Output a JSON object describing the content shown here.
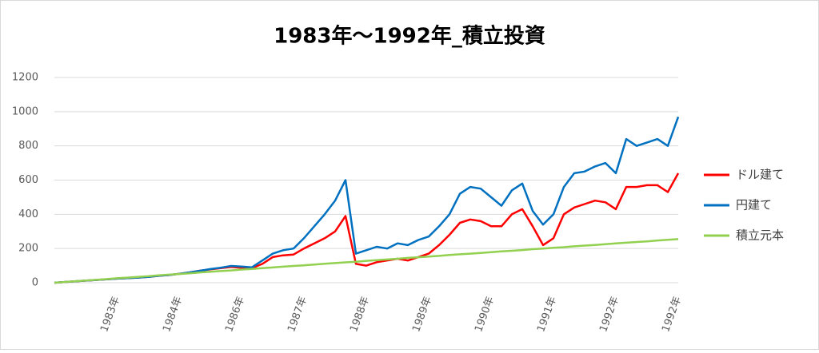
{
  "chart_data": {
    "type": "line",
    "title": "1983年～1992年_積立投資",
    "categories": [
      null,
      null,
      null,
      null,
      null,
      null,
      "1983年",
      null,
      null,
      null,
      null,
      null,
      "1984年",
      null,
      null,
      null,
      null,
      null,
      "1986年",
      null,
      null,
      null,
      null,
      null,
      "1987年",
      null,
      null,
      null,
      null,
      null,
      "1988年",
      null,
      null,
      null,
      null,
      null,
      "1989年",
      null,
      null,
      null,
      null,
      null,
      "1990年",
      null,
      null,
      null,
      null,
      null,
      "1991年",
      null,
      null,
      null,
      null,
      null,
      "1992年",
      null,
      null,
      null,
      null,
      null,
      "1992年"
    ],
    "series": [
      {
        "name": "ドル建て",
        "color": "#ff0000",
        "values": [
          0,
          4,
          8,
          12,
          16,
          20,
          24,
          27,
          30,
          34,
          40,
          45,
          52,
          60,
          70,
          78,
          85,
          92,
          88,
          85,
          110,
          150,
          160,
          165,
          200,
          230,
          260,
          300,
          390,
          110,
          100,
          120,
          130,
          140,
          130,
          150,
          170,
          220,
          280,
          350,
          370,
          360,
          330,
          330,
          400,
          430,
          330,
          220,
          260,
          400,
          440,
          460,
          480,
          470,
          430,
          560,
          560,
          570,
          570,
          530,
          640
        ]
      },
      {
        "name": "円建て",
        "color": "#0070c0",
        "values": [
          0,
          4,
          8,
          12,
          16,
          20,
          24,
          27,
          30,
          34,
          40,
          45,
          52,
          60,
          70,
          80,
          88,
          98,
          95,
          90,
          130,
          170,
          190,
          200,
          260,
          330,
          400,
          480,
          600,
          170,
          190,
          210,
          200,
          230,
          220,
          250,
          270,
          330,
          400,
          520,
          560,
          550,
          500,
          450,
          540,
          580,
          420,
          340,
          400,
          560,
          640,
          650,
          680,
          700,
          640,
          840,
          800,
          820,
          840,
          800,
          970
        ]
      },
      {
        "name": "積立元本",
        "color": "#92d050",
        "values": [
          0,
          4,
          9,
          13,
          17,
          21,
          26,
          30,
          34,
          38,
          43,
          47,
          51,
          55,
          60,
          64,
          68,
          72,
          77,
          81,
          85,
          89,
          94,
          98,
          102,
          106,
          111,
          115,
          119,
          123,
          128,
          132,
          136,
          140,
          145,
          149,
          153,
          157,
          162,
          166,
          170,
          174,
          179,
          183,
          187,
          191,
          196,
          200,
          204,
          208,
          213,
          217,
          221,
          225,
          230,
          234,
          238,
          242,
          247,
          251,
          255
        ]
      }
    ],
    "ylim": [
      0,
      1200
    ],
    "yticks": [
      0,
      200,
      400,
      600,
      800,
      1000,
      1200
    ],
    "grid": true,
    "legend": "right"
  }
}
